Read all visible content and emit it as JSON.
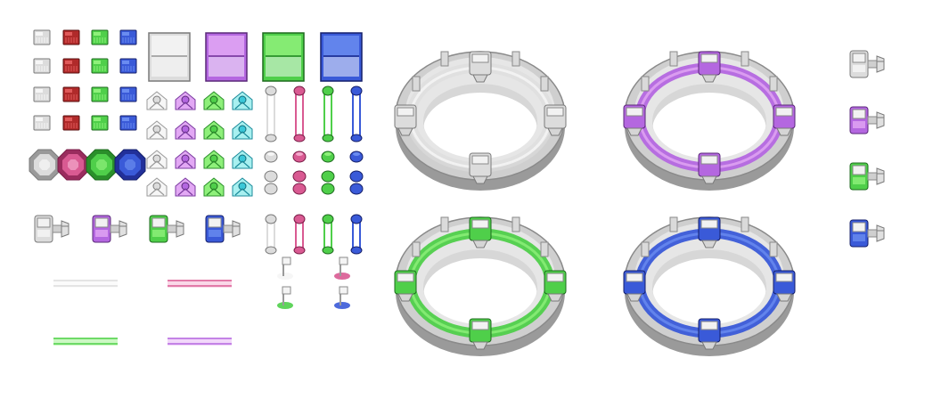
{
  "sheet": {
    "background": "#ffffff",
    "palette": {
      "white": {
        "light": "#f6f6f6",
        "mid": "#dcdcdc",
        "dark": "#9a9a9a",
        "edge": "#7a7a7a"
      },
      "red": {
        "light": "#e05a5a",
        "mid": "#b02a2a",
        "dark": "#7a1818",
        "edge": "#5a1010"
      },
      "green": {
        "light": "#8ef07a",
        "mid": "#4fcf4a",
        "dark": "#2a8f2a",
        "edge": "#1e6a1e"
      },
      "blue": {
        "light": "#6a8cf0",
        "mid": "#3a5ad8",
        "dark": "#22309a",
        "edge": "#141f6a"
      },
      "purple": {
        "light": "#e2a8f4",
        "mid": "#b467e0",
        "dark": "#7a3aa0",
        "edge": "#5a2878"
      },
      "pink": {
        "light": "#f4a8cc",
        "mid": "#d95a92",
        "dark": "#9a2c5e",
        "edge": "#7a1e48"
      },
      "cyan": {
        "light": "#a8f0f0",
        "mid": "#3ac8d8",
        "dark": "#1a8a9a",
        "edge": "#126a78"
      },
      "gray": {
        "light": "#e8e8e8",
        "mid": "#bdbdbd",
        "dark": "#8c8c8c",
        "edge": "#6a6a6a"
      }
    },
    "groups": {
      "small_panels": {
        "rows": 4,
        "colors": [
          "white",
          "red",
          "green",
          "blue"
        ]
      },
      "octagon_gems": [
        "white",
        "pink",
        "green",
        "blue"
      ],
      "large_windows": [
        "white",
        "purple",
        "green",
        "blue"
      ],
      "rune_icons": {
        "rows": 4,
        "colors": [
          "white",
          "purple",
          "green",
          "cyan"
        ]
      },
      "pillars_tall": [
        "white",
        "pink",
        "green",
        "blue"
      ],
      "capsules_small": [
        "white",
        "pink",
        "green",
        "blue"
      ],
      "pillars_short": [
        "white",
        "pink",
        "green",
        "blue"
      ],
      "connector_blocks": [
        "white",
        "purple",
        "green",
        "blue"
      ],
      "beams": [
        "white",
        "pink",
        "green",
        "purple"
      ],
      "signs": [
        "white",
        "pink",
        "green",
        "blue"
      ],
      "rings": [
        "white",
        "purple",
        "green",
        "blue"
      ],
      "side_connectors": [
        "white",
        "purple",
        "green",
        "blue"
      ]
    }
  }
}
